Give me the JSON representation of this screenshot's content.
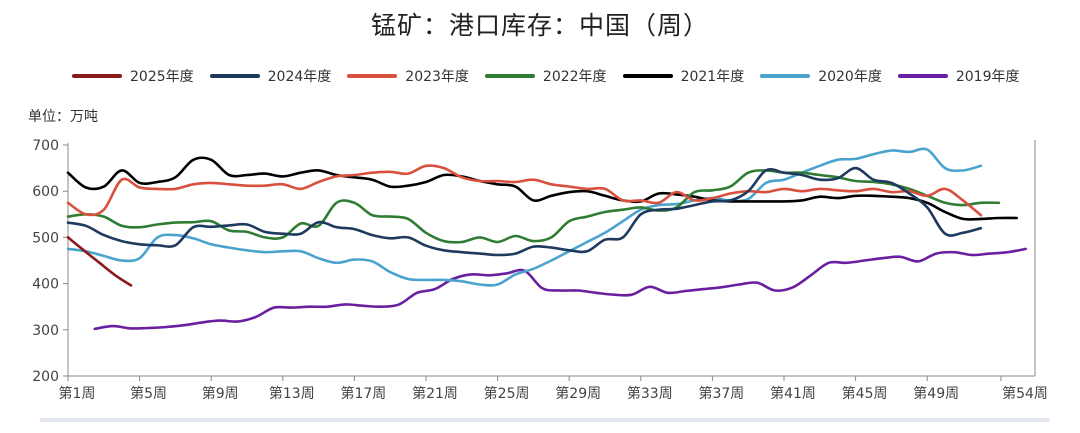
{
  "title": "锰矿：港口库存：中国（周）",
  "unit_label": "单位：万吨",
  "legend": [
    {
      "label": "2025年度",
      "color": "#8b1a1a"
    },
    {
      "label": "2024年度",
      "color": "#1f3a5f"
    },
    {
      "label": "2023年度",
      "color": "#d9503f"
    },
    {
      "label": "2022年度",
      "color": "#2e7d32"
    },
    {
      "label": "2021年度",
      "color": "#000000"
    },
    {
      "label": "2020年度",
      "color": "#4aa3cf"
    },
    {
      "label": "2019年度",
      "color": "#6a1fa0"
    }
  ],
  "chart_data": {
    "type": "line",
    "title": "锰矿：港口库存：中国（周）",
    "xlabel": "",
    "ylabel": "单位：万吨",
    "ylim": [
      200,
      700
    ],
    "y_ticks": [
      200,
      300,
      400,
      500,
      600,
      700
    ],
    "x_tick_labels": [
      "第1周",
      "第5周",
      "第9周",
      "第13周",
      "第17周",
      "第21周",
      "第25周",
      "第29周",
      "第33周",
      "第37周",
      "第41周",
      "第45周",
      "第49周",
      "第54周"
    ],
    "x_tick_weeks": [
      1,
      5,
      9,
      13,
      17,
      21,
      25,
      29,
      33,
      37,
      41,
      45,
      49,
      54
    ],
    "grid": false,
    "legend_position": "top",
    "series": [
      {
        "name": "2025年度",
        "color": "#8b1a1a",
        "start_week": 1,
        "step": 1,
        "values": [
          500,
          472,
          445,
          418,
          396
        ]
      },
      {
        "name": "2024年度",
        "color": "#1f3a5f",
        "start_week": 1,
        "step": 1,
        "values": [
          532,
          525,
          505,
          492,
          485,
          483,
          483,
          522,
          523,
          526,
          528,
          512,
          508,
          508,
          533,
          522,
          518,
          505,
          498,
          500,
          482,
          472,
          468,
          465,
          462,
          465,
          480,
          478,
          472,
          470,
          495,
          500,
          550,
          560,
          562,
          570,
          578,
          580,
          600,
          645,
          640,
          635,
          625,
          628,
          650,
          625,
          618,
          595,
          565,
          508,
          510,
          520
        ]
      },
      {
        "name": "2023年度",
        "color": "#d9503f",
        "start_week": 1,
        "step": 1,
        "values": [
          575,
          550,
          560,
          625,
          608,
          605,
          605,
          615,
          618,
          615,
          612,
          612,
          615,
          605,
          620,
          632,
          635,
          640,
          642,
          638,
          655,
          650,
          630,
          622,
          622,
          620,
          625,
          615,
          610,
          605,
          605,
          580,
          580,
          575,
          598,
          580,
          585,
          595,
          600,
          598,
          605,
          600,
          605,
          602,
          600,
          605,
          598,
          600,
          590,
          605,
          580,
          548
        ]
      },
      {
        "name": "2022年度",
        "color": "#2e7d32",
        "start_week": 1,
        "step": 1,
        "values": [
          545,
          550,
          545,
          525,
          522,
          528,
          532,
          533,
          535,
          515,
          512,
          500,
          500,
          530,
          525,
          575,
          575,
          548,
          545,
          540,
          510,
          492,
          490,
          500,
          490,
          503,
          492,
          500,
          535,
          545,
          555,
          560,
          565,
          558,
          565,
          598,
          602,
          610,
          640,
          645,
          640,
          640,
          635,
          630,
          622,
          620,
          615,
          605,
          590,
          575,
          570,
          575,
          575
        ]
      },
      {
        "name": "2021年度",
        "color": "#000000",
        "start_week": 1,
        "step": 1,
        "values": [
          640,
          608,
          610,
          645,
          618,
          620,
          630,
          668,
          668,
          635,
          635,
          638,
          632,
          640,
          645,
          635,
          630,
          625,
          610,
          612,
          620,
          635,
          632,
          622,
          615,
          610,
          580,
          590,
          598,
          600,
          590,
          580,
          578,
          595,
          593,
          588,
          580,
          578,
          578,
          578,
          578,
          580,
          588,
          585,
          590,
          590,
          588,
          585,
          575,
          555,
          540,
          540,
          542,
          542
        ]
      },
      {
        "name": "2020年度",
        "color": "#4aa3cf",
        "start_week": 1,
        "step": 1,
        "values": [
          475,
          470,
          460,
          450,
          455,
          500,
          505,
          498,
          485,
          478,
          472,
          468,
          470,
          470,
          455,
          445,
          452,
          448,
          425,
          410,
          408,
          408,
          405,
          398,
          398,
          420,
          432,
          450,
          470,
          490,
          510,
          535,
          560,
          570,
          572,
          580,
          585,
          580,
          583,
          618,
          625,
          640,
          655,
          668,
          670,
          680,
          688,
          685,
          690,
          650,
          645,
          655
        ]
      },
      {
        "name": "2019年度",
        "color": "#6a1fa0",
        "start_week": 2.5,
        "step": 1,
        "values": [
          302,
          308,
          303,
          304,
          306,
          310,
          316,
          320,
          318,
          328,
          348,
          348,
          350,
          350,
          355,
          352,
          350,
          355,
          380,
          388,
          410,
          420,
          418,
          422,
          428,
          390,
          385,
          385,
          380,
          376,
          376,
          393,
          380,
          384,
          388,
          392,
          398,
          402,
          385,
          392,
          418,
          445,
          445,
          450,
          455,
          458,
          448,
          465,
          468,
          462,
          465,
          468,
          475
        ]
      }
    ]
  }
}
